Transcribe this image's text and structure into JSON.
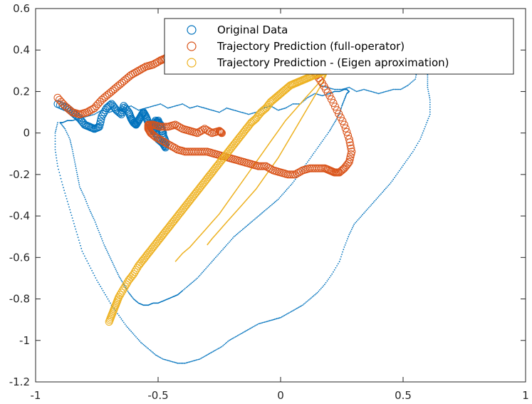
{
  "chart_data": {
    "type": "scatter",
    "title": "",
    "xlabel": "",
    "ylabel": "",
    "xlim": [
      -1,
      1
    ],
    "ylim": [
      -1.2,
      0.6
    ],
    "xticks": [
      -1,
      -0.5,
      0,
      0.5,
      1
    ],
    "xtick_labels": [
      "-1",
      "-0.5",
      "0",
      "0.5",
      "1"
    ],
    "yticks": [
      -1.2,
      -1,
      -0.8,
      -0.6,
      -0.4,
      -0.2,
      0,
      0.2,
      0.4,
      0.6
    ],
    "ytick_labels": [
      "-1.2",
      "-1",
      "-0.8",
      "-0.6",
      "-0.4",
      "-0.2",
      "0",
      "0.2",
      "0.4",
      "0.6"
    ],
    "grid": false,
    "legend_position": "top-right",
    "colors": {
      "original": "#0072BD",
      "full_operator": "#D95319",
      "eigen": "#EDB120"
    },
    "series": [
      {
        "name": "Original Data",
        "color": "#0072BD",
        "marker": "circle-large",
        "x": [
          -0.91,
          -0.87,
          -0.84,
          -0.82,
          -0.8,
          -0.78,
          -0.76,
          -0.74,
          -0.73,
          -0.71,
          -0.69,
          -0.67,
          -0.65,
          -0.64,
          -0.62,
          -0.61,
          -0.6,
          -0.59,
          -0.58,
          -0.57,
          -0.56,
          -0.55,
          -0.54,
          -0.53,
          -0.52,
          -0.51,
          -0.5,
          -0.49,
          -0.48,
          -0.47,
          -0.47,
          -0.48,
          -0.5,
          -0.51,
          -0.52,
          -0.51,
          -0.49,
          -0.48
        ],
        "y": [
          0.14,
          0.12,
          0.09,
          0.07,
          0.04,
          0.03,
          0.02,
          0.03,
          0.08,
          0.12,
          0.14,
          0.11,
          0.09,
          0.13,
          0.1,
          0.07,
          0.05,
          0.04,
          0.06,
          0.08,
          0.1,
          0.08,
          0.05,
          0.03,
          0.01,
          0.04,
          0.06,
          0.03,
          -0.01,
          -0.04,
          -0.07,
          -0.05,
          -0.03,
          0.0,
          0.03,
          0.06,
          0.04,
          0.0
        ]
      },
      {
        "name": "Trajectory Prediction (full-operator)",
        "color": "#D95319",
        "marker": "circle-large",
        "x": [
          -0.91,
          -0.88,
          -0.85,
          -0.82,
          -0.79,
          -0.76,
          -0.73,
          -0.7,
          -0.67,
          -0.64,
          -0.61,
          -0.58,
          -0.55,
          -0.52,
          -0.49,
          -0.47,
          -0.45,
          -0.43,
          -0.41,
          -0.39,
          -0.37,
          -0.35,
          -0.33,
          -0.31,
          -0.29,
          -0.27,
          -0.25,
          -0.22,
          -0.19,
          -0.16,
          -0.13,
          -0.1,
          -0.07,
          -0.04,
          -0.01,
          0.02,
          0.05,
          0.08,
          0.11,
          0.14,
          0.17,
          0.2,
          0.23,
          0.26,
          0.28,
          0.29,
          0.28,
          0.26,
          0.24,
          0.22,
          0.2,
          0.18,
          0.15,
          0.12,
          0.09,
          0.06,
          0.03,
          0.0,
          -0.03,
          -0.06,
          -0.09,
          -0.12,
          -0.15,
          -0.18,
          -0.21,
          -0.24,
          -0.27,
          -0.3,
          -0.33,
          -0.36,
          -0.39,
          -0.42,
          -0.45,
          -0.48,
          -0.51,
          -0.53,
          -0.54,
          -0.54,
          -0.52,
          -0.49,
          -0.46,
          -0.43,
          -0.4,
          -0.37,
          -0.34,
          -0.31,
          -0.28,
          -0.25,
          -0.24
        ],
        "y": [
          0.17,
          0.13,
          0.1,
          0.09,
          0.1,
          0.12,
          0.16,
          0.19,
          0.22,
          0.25,
          0.28,
          0.3,
          0.32,
          0.33,
          0.35,
          0.36,
          0.38,
          0.39,
          0.4,
          0.41,
          0.42,
          0.42,
          0.43,
          0.43,
          0.44,
          0.44,
          0.44,
          0.44,
          0.45,
          0.45,
          0.45,
          0.45,
          0.44,
          0.43,
          0.42,
          0.4,
          0.38,
          0.36,
          0.33,
          0.29,
          0.24,
          0.18,
          0.11,
          0.04,
          -0.03,
          -0.09,
          -0.14,
          -0.17,
          -0.19,
          -0.19,
          -0.18,
          -0.17,
          -0.17,
          -0.17,
          -0.18,
          -0.2,
          -0.2,
          -0.19,
          -0.18,
          -0.16,
          -0.16,
          -0.15,
          -0.14,
          -0.13,
          -0.12,
          -0.11,
          -0.1,
          -0.09,
          -0.09,
          -0.09,
          -0.09,
          -0.08,
          -0.06,
          -0.04,
          -0.02,
          0.0,
          0.02,
          0.04,
          0.04,
          0.03,
          0.03,
          0.04,
          0.02,
          0.01,
          0.0,
          0.02,
          0.0,
          0.01,
          0.0
        ]
      },
      {
        "name": "Trajectory Prediction - (Eigen aproximation)",
        "color": "#EDB120",
        "marker": "circle-large",
        "x": [
          -0.7,
          -0.69,
          -0.68,
          -0.67,
          -0.66,
          -0.64,
          -0.62,
          -0.6,
          -0.58,
          -0.56,
          -0.54,
          -0.52,
          -0.5,
          -0.48,
          -0.46,
          -0.44,
          -0.42,
          -0.4,
          -0.38,
          -0.36,
          -0.34,
          -0.32,
          -0.3,
          -0.28,
          -0.26,
          -0.24,
          -0.22,
          -0.2,
          -0.18,
          -0.16,
          -0.14,
          -0.12,
          -0.1,
          -0.08,
          -0.06,
          -0.04,
          -0.02,
          0.0,
          0.02,
          0.04,
          0.06,
          0.08,
          0.1,
          0.12,
          0.14,
          0.16,
          0.18
        ],
        "y": [
          -0.91,
          -0.88,
          -0.85,
          -0.82,
          -0.79,
          -0.75,
          -0.71,
          -0.68,
          -0.64,
          -0.61,
          -0.58,
          -0.55,
          -0.52,
          -0.49,
          -0.46,
          -0.43,
          -0.4,
          -0.37,
          -0.34,
          -0.31,
          -0.28,
          -0.25,
          -0.22,
          -0.19,
          -0.16,
          -0.13,
          -0.1,
          -0.07,
          -0.04,
          -0.01,
          0.02,
          0.05,
          0.07,
          0.1,
          0.12,
          0.15,
          0.17,
          0.19,
          0.21,
          0.23,
          0.24,
          0.25,
          0.26,
          0.27,
          0.28,
          0.29,
          0.3
        ]
      },
      {
        "name": "",
        "color": "#EDB120",
        "marker": "line-thin",
        "x": [
          -0.43,
          -0.4,
          -0.37,
          -0.34,
          -0.31,
          -0.28,
          -0.25,
          -0.22,
          -0.19,
          -0.16,
          -0.13,
          -0.1,
          -0.07,
          -0.04,
          -0.01,
          0.02,
          0.05,
          0.08,
          0.11,
          0.14,
          0.17,
          0.19,
          0.17,
          0.14,
          0.11,
          0.08,
          0.05,
          0.02,
          -0.01,
          -0.04,
          -0.07,
          -0.1,
          -0.13,
          -0.16,
          -0.19,
          -0.22,
          -0.25,
          -0.28,
          -0.3
        ],
        "y": [
          -0.62,
          -0.58,
          -0.55,
          -0.51,
          -0.47,
          -0.43,
          -0.39,
          -0.34,
          -0.29,
          -0.24,
          -0.19,
          -0.14,
          -0.09,
          -0.04,
          0.01,
          0.06,
          0.1,
          0.14,
          0.18,
          0.22,
          0.26,
          0.29,
          0.24,
          0.18,
          0.12,
          0.06,
          0.0,
          -0.06,
          -0.12,
          -0.17,
          -0.22,
          -0.27,
          -0.31,
          -0.35,
          -0.39,
          -0.43,
          -0.47,
          -0.51,
          -0.54
        ]
      },
      {
        "name": "",
        "color": "#0072BD",
        "marker": "dot-small",
        "x": [
          -0.9,
          -0.88,
          -0.86,
          -0.85,
          -0.84,
          -0.83,
          -0.82,
          -0.8,
          -0.78,
          -0.76,
          -0.74,
          -0.72,
          -0.7,
          -0.68,
          -0.66,
          -0.64,
          -0.62,
          -0.6,
          -0.58,
          -0.56,
          -0.54,
          -0.52,
          -0.5,
          -0.48,
          -0.46,
          -0.44,
          -0.42,
          -0.4,
          -0.37,
          -0.34,
          -0.31,
          -0.28,
          -0.25,
          -0.22,
          -0.19,
          -0.16,
          -0.13,
          -0.1,
          -0.07,
          -0.04,
          -0.01,
          0.02,
          0.05,
          0.08,
          0.11,
          0.14,
          0.17,
          0.2,
          0.22,
          0.24,
          0.25,
          0.26,
          0.27,
          0.28,
          0.27,
          0.26,
          0.24,
          0.22,
          0.2,
          0.17,
          0.14,
          0.11,
          0.08,
          0.05,
          0.02,
          -0.01,
          -0.04,
          -0.07,
          -0.1,
          -0.13,
          -0.16,
          -0.19,
          -0.22,
          -0.25,
          -0.28,
          -0.31,
          -0.34,
          -0.37,
          -0.4,
          -0.43,
          -0.46,
          -0.49,
          -0.52,
          -0.55,
          -0.58,
          -0.61,
          -0.64,
          -0.67,
          -0.7,
          -0.73,
          -0.76,
          -0.79,
          -0.82,
          -0.85,
          -0.87,
          -0.89,
          -0.9
        ],
        "y": [
          0.05,
          0.02,
          -0.03,
          -0.08,
          -0.14,
          -0.2,
          -0.26,
          -0.31,
          -0.37,
          -0.42,
          -0.48,
          -0.54,
          -0.59,
          -0.64,
          -0.69,
          -0.73,
          -0.77,
          -0.8,
          -0.82,
          -0.83,
          -0.83,
          -0.82,
          -0.82,
          -0.81,
          -0.8,
          -0.79,
          -0.78,
          -0.76,
          -0.73,
          -0.7,
          -0.66,
          -0.62,
          -0.58,
          -0.54,
          -0.5,
          -0.47,
          -0.44,
          -0.41,
          -0.38,
          -0.35,
          -0.32,
          -0.28,
          -0.24,
          -0.19,
          -0.14,
          -0.09,
          -0.04,
          0.01,
          0.05,
          0.09,
          0.13,
          0.16,
          0.19,
          0.2,
          0.21,
          0.21,
          0.2,
          0.2,
          0.19,
          0.18,
          0.19,
          0.17,
          0.14,
          0.14,
          0.12,
          0.11,
          0.13,
          0.12,
          0.1,
          0.09,
          0.1,
          0.11,
          0.12,
          0.1,
          0.11,
          0.12,
          0.13,
          0.12,
          0.14,
          0.13,
          0.12,
          0.14,
          0.13,
          0.12,
          0.11,
          0.13,
          0.12,
          0.11,
          0.1,
          0.11,
          0.09,
          0.08,
          0.07,
          0.06,
          0.06,
          0.05,
          0.05
        ]
      },
      {
        "name": "",
        "color": "#0072BD",
        "marker": "dot-small",
        "x": [
          -0.91,
          -0.92,
          -0.92,
          -0.91,
          -0.89,
          -0.87,
          -0.85,
          -0.83,
          -0.81,
          -0.78,
          -0.75,
          -0.72,
          -0.69,
          -0.66,
          -0.63,
          -0.6,
          -0.57,
          -0.54,
          -0.51,
          -0.48,
          -0.45,
          -0.42,
          -0.39,
          -0.36,
          -0.33,
          -0.3,
          -0.27,
          -0.24,
          -0.21,
          -0.18,
          -0.15,
          -0.12,
          -0.09,
          -0.06,
          -0.03,
          0.0,
          0.03,
          0.06,
          0.09,
          0.12,
          0.15,
          0.18,
          0.21,
          0.24,
          0.26,
          0.28,
          0.3,
          0.33,
          0.36,
          0.39,
          0.42,
          0.45,
          0.48,
          0.51,
          0.54,
          0.57,
          0.59,
          0.61,
          0.61,
          0.6,
          0.6,
          0.59,
          0.58,
          0.57,
          0.56,
          0.55,
          0.52,
          0.49,
          0.46,
          0.43,
          0.4,
          0.37,
          0.34,
          0.31,
          0.28,
          0.25,
          0.22,
          0.19,
          0.16
        ],
        "y": [
          0.05,
          0.0,
          -0.08,
          -0.16,
          -0.25,
          -0.33,
          -0.41,
          -0.49,
          -0.57,
          -0.64,
          -0.71,
          -0.77,
          -0.83,
          -0.88,
          -0.93,
          -0.97,
          -1.01,
          -1.04,
          -1.07,
          -1.09,
          -1.1,
          -1.11,
          -1.11,
          -1.1,
          -1.09,
          -1.07,
          -1.05,
          -1.03,
          -1.0,
          -0.98,
          -0.96,
          -0.94,
          -0.92,
          -0.91,
          -0.9,
          -0.89,
          -0.87,
          -0.85,
          -0.83,
          -0.8,
          -0.77,
          -0.73,
          -0.68,
          -0.62,
          -0.55,
          -0.49,
          -0.44,
          -0.4,
          -0.36,
          -0.32,
          -0.28,
          -0.24,
          -0.19,
          -0.14,
          -0.09,
          -0.03,
          0.03,
          0.09,
          0.16,
          0.22,
          0.28,
          0.33,
          0.36,
          0.37,
          0.32,
          0.26,
          0.23,
          0.21,
          0.21,
          0.2,
          0.19,
          0.2,
          0.21,
          0.2,
          0.22,
          0.21,
          0.21,
          0.22,
          0.23
        ]
      }
    ]
  }
}
